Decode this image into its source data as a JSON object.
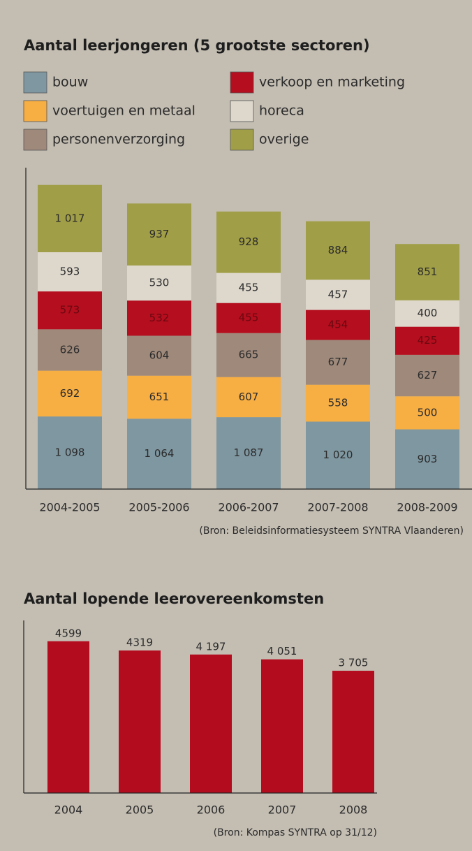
{
  "chart_data": [
    {
      "type": "stacked_bar",
      "title": "Aantal leerjongeren (5 grootste sectoren)",
      "categories": [
        "2004-2005",
        "2005-2006",
        "2006-2007",
        "2007-2008",
        "2008-2009"
      ],
      "series": [
        {
          "name": "bouw",
          "color": "#7f97a1",
          "values": [
            1098,
            1064,
            1087,
            1020,
            903
          ],
          "value_labels": [
            "1 098",
            "1 064",
            "1 087",
            "1 020",
            "903"
          ]
        },
        {
          "name": "voertuigen en metaal",
          "color": "#f7ae43",
          "values": [
            692,
            651,
            607,
            558,
            500
          ]
        },
        {
          "name": "personenverzorging",
          "color": "#9e897b",
          "values": [
            626,
            604,
            665,
            677,
            627
          ]
        },
        {
          "name": "verkoop en marketing",
          "color": "#b50e1e",
          "values": [
            573,
            532,
            455,
            454,
            425
          ]
        },
        {
          "name": "horeca",
          "color": "#ddd7cc",
          "values": [
            593,
            530,
            455,
            457,
            400
          ]
        },
        {
          "name": "overige",
          "color": "#a09e46",
          "values": [
            1017,
            937,
            928,
            884,
            851
          ],
          "value_labels": [
            "1 017",
            "937",
            "928",
            "884",
            "851"
          ]
        }
      ],
      "ylim": [
        0,
        4860
      ],
      "source": "(Bron: Beleidsinformatiesysteem SYNTRA Vlaanderen)"
    },
    {
      "type": "bar",
      "title": "Aantal lopende leerovereenkomsten",
      "categories": [
        "2004",
        "2005",
        "2006",
        "2007",
        "2008"
      ],
      "values": [
        4599,
        4319,
        4197,
        4051,
        3705
      ],
      "value_labels": [
        "4599",
        "4319",
        "4 197",
        "4 051",
        "3 705"
      ],
      "color": "#b40c1f",
      "ylim": [
        0,
        5230
      ],
      "source": "(Bron: Kompas SYNTRA op 31/12)"
    }
  ]
}
